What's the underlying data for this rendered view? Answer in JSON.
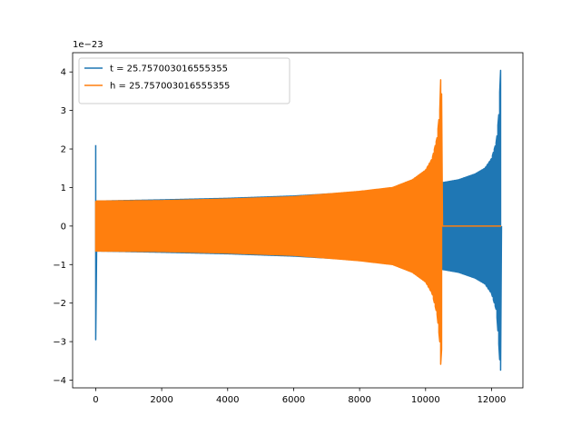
{
  "chart_data": {
    "type": "line",
    "title": "",
    "xlabel": "",
    "ylabel": "",
    "y_offset_text": "1e−23",
    "xlim": [
      -700,
      12950
    ],
    "ylim": [
      -4.2,
      4.5
    ],
    "xticks": [
      0,
      2000,
      4000,
      6000,
      8000,
      10000,
      12000
    ],
    "xtick_labels": [
      "0",
      "2000",
      "4000",
      "6000",
      "8000",
      "10000",
      "12000"
    ],
    "yticks": [
      -4,
      -3,
      -2,
      -1,
      0,
      1,
      2,
      3,
      4
    ],
    "ytick_labels": [
      "−4",
      "−3",
      "−2",
      "−1",
      "0",
      "1",
      "2",
      "3",
      "4"
    ],
    "grid": false,
    "legend_position": "top-left",
    "series": [
      {
        "name": "t = 25.757003016555355",
        "color": "#1f77b4",
        "x_end": 12290,
        "envelope_x": [
          0,
          20,
          60,
          150,
          2000,
          4000,
          6000,
          8000,
          10000,
          11000,
          11500,
          11800,
          12000,
          12150,
          12230,
          12270,
          12290,
          12300
        ],
        "envelope_upper": [
          2.1,
          0.65,
          0.65,
          0.65,
          0.68,
          0.72,
          0.78,
          0.88,
          1.05,
          1.2,
          1.35,
          1.5,
          1.75,
          2.2,
          3.0,
          4.15,
          3.6,
          0
        ],
        "envelope_lower": [
          -2.95,
          -0.65,
          -0.65,
          -0.65,
          -0.68,
          -0.72,
          -0.78,
          -0.88,
          -1.05,
          -1.2,
          -1.35,
          -1.5,
          -1.75,
          -2.2,
          -3.2,
          -3.85,
          -3.3,
          0
        ]
      },
      {
        "name": "h = 25.757003016555355",
        "color": "#ff7f0e",
        "x_end": 10500,
        "envelope_x": [
          0,
          150,
          2000,
          4000,
          6000,
          8000,
          9000,
          9600,
          10000,
          10200,
          10350,
          10430,
          10470,
          10490,
          10500
        ],
        "envelope_upper": [
          0.65,
          0.65,
          0.66,
          0.7,
          0.76,
          0.9,
          1.0,
          1.2,
          1.45,
          1.75,
          2.3,
          3.0,
          4.15,
          3.2,
          0
        ],
        "envelope_lower": [
          -0.65,
          -0.65,
          -0.66,
          -0.7,
          -0.76,
          -0.9,
          -1.0,
          -1.2,
          -1.45,
          -1.75,
          -2.3,
          -3.0,
          -3.85,
          -3.0,
          0
        ],
        "flat_after_x": [
          10500,
          12290
        ],
        "flat_value": 0
      }
    ]
  }
}
